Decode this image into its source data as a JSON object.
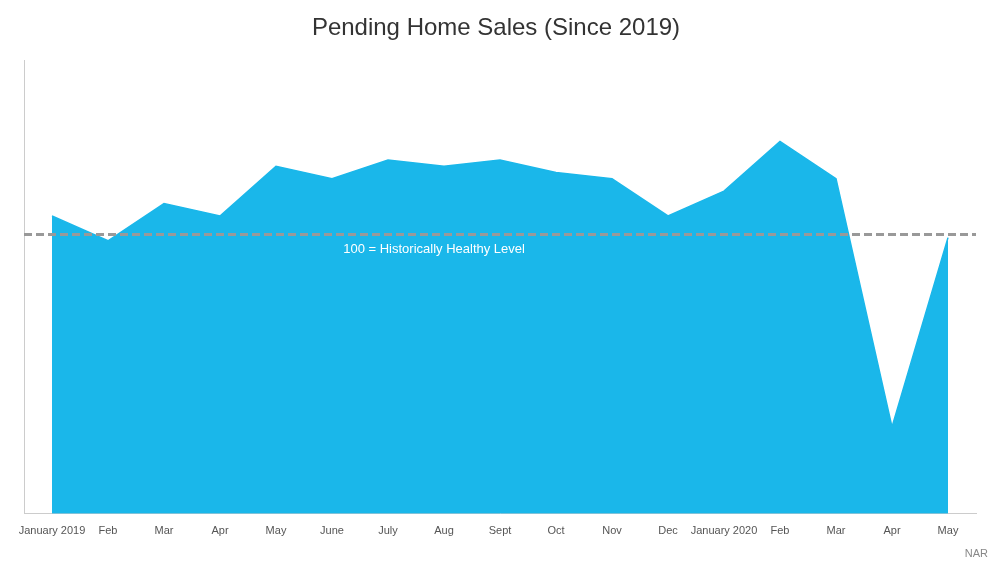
{
  "chart_data": {
    "type": "area",
    "title": "Pending Home Sales (Since 2019)",
    "categories": [
      "January 2019",
      "Feb",
      "Mar",
      "Apr",
      "May",
      "June",
      "July",
      "Aug",
      "Sept",
      "Oct",
      "Nov",
      "Dec",
      "January 2020",
      "Feb",
      "Mar",
      "Apr",
      "May"
    ],
    "values": [
      103,
      99,
      105,
      103,
      111,
      109,
      112,
      111,
      112,
      110,
      109,
      103,
      107,
      115,
      109,
      69,
      99.5
    ],
    "color": "#1ab7ea",
    "ylim": [
      55,
      128
    ],
    "grid": false,
    "tick_labels": "x",
    "hlines": [
      {
        "value": 100,
        "label": "100 = Historically Healthy Level",
        "color": "#999999",
        "text_color": "#ffffff",
        "line_style": "dashed"
      }
    ],
    "annotations": [
      {
        "text": "NAR"
      }
    ]
  }
}
